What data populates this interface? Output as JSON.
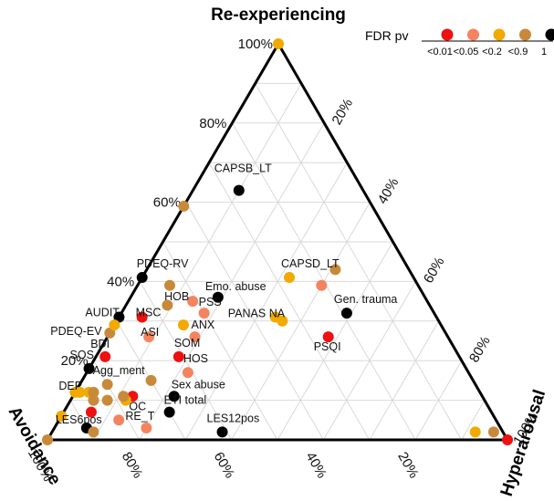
{
  "chart_data": {
    "type": "scatter",
    "subtype": "ternary",
    "title": "",
    "axes": {
      "top": "Re-experiencing",
      "left": "Avoidance",
      "right": "Hyperarousal"
    },
    "ticks": [
      "20%",
      "40%",
      "60%",
      "80%",
      "100%"
    ],
    "grid": true,
    "legend": {
      "title": "FDR pv",
      "position": "top-right",
      "categories": [
        {
          "label": "<0.01",
          "color": "#ee1111"
        },
        {
          "label": "<0.05",
          "color": "#f4845f"
        },
        {
          "label": "<0.2",
          "color": "#f2a900"
        },
        {
          "label": "<0.9",
          "color": "#c88a3a"
        },
        {
          "label": "1",
          "color": "#000000"
        }
      ]
    },
    "points": [
      {
        "label": "CAPSB_LT",
        "reexp": 0.63,
        "hyper": 0.1,
        "cat": 4
      },
      {
        "label": "PDEQ-RV",
        "reexp": 0.41,
        "hyper": 0.0,
        "cat": 4
      },
      {
        "label": "CAPSD_LT",
        "reexp": 0.41,
        "hyper": 0.32,
        "cat": 2
      },
      {
        "label": "Emo. abuse",
        "reexp": 0.36,
        "hyper": 0.19,
        "cat": 4
      },
      {
        "label": "HOB",
        "reexp": 0.35,
        "hyper": 0.14,
        "cat": 1
      },
      {
        "label": "PSS",
        "reexp": 0.32,
        "hyper": 0.18,
        "cat": 1
      },
      {
        "label": "PANAS NA",
        "reexp": 0.31,
        "hyper": 0.34,
        "cat": 2
      },
      {
        "label": "Gen. trauma",
        "reexp": 0.32,
        "hyper": 0.49,
        "cat": 4
      },
      {
        "label": "AUDIT",
        "reexp": 0.31,
        "hyper": 0.0,
        "cat": 4
      },
      {
        "label": "MSC",
        "reexp": 0.31,
        "hyper": 0.05,
        "cat": 0
      },
      {
        "label": "PDEQ-EV",
        "reexp": 0.27,
        "hyper": 0.0,
        "cat": 3
      },
      {
        "label": "ASI",
        "reexp": 0.26,
        "hyper": 0.09,
        "cat": 1
      },
      {
        "label": "ANX",
        "reexp": 0.26,
        "hyper": 0.19,
        "cat": 1
      },
      {
        "label": "SOM",
        "reexp": 0.21,
        "hyper": 0.18,
        "cat": 0
      },
      {
        "label": "PSQI",
        "reexp": 0.26,
        "hyper": 0.48,
        "cat": 0
      },
      {
        "label": "SOS",
        "reexp": 0.18,
        "hyper": 0.0,
        "cat": 4
      },
      {
        "label": "BDI",
        "reexp": 0.21,
        "hyper": 0.02,
        "cat": 0
      },
      {
        "label": "HOS",
        "reexp": 0.17,
        "hyper": 0.22,
        "cat": 1
      },
      {
        "label": "Agg_ment",
        "reexp": 0.14,
        "hyper": 0.06,
        "cat": 3
      },
      {
        "label": "DEP",
        "reexp": 0.12,
        "hyper": 0.0,
        "cat": 2
      },
      {
        "label": "Sex abuse",
        "reexp": 0.11,
        "hyper": 0.22,
        "cat": 4
      },
      {
        "label": "OC",
        "reexp": 0.11,
        "hyper": 0.13,
        "cat": 0
      },
      {
        "label": "ETI total",
        "reexp": 0.07,
        "hyper": 0.23,
        "cat": 4
      },
      {
        "label": "LES6pos",
        "reexp": 0.03,
        "hyper": 0.07,
        "cat": 4
      },
      {
        "label": "RE_T",
        "reexp": 0.03,
        "hyper": 0.2,
        "cat": 1
      },
      {
        "label": "LES12pos",
        "reexp": 0.02,
        "hyper": 0.37,
        "cat": 4
      },
      {
        "label": "",
        "reexp": 1.0,
        "hyper": 0.0,
        "cat": 2
      },
      {
        "label": "",
        "reexp": 0.0,
        "hyper": 0.0,
        "cat": 3
      },
      {
        "label": "",
        "reexp": 0.0,
        "hyper": 1.0,
        "cat": 0
      },
      {
        "label": "",
        "reexp": 0.02,
        "hyper": 0.92,
        "cat": 2
      },
      {
        "label": "",
        "reexp": 0.02,
        "hyper": 0.96,
        "cat": 3
      },
      {
        "label": "",
        "reexp": 0.59,
        "hyper": 0.0,
        "cat": 3
      },
      {
        "label": "",
        "reexp": 0.43,
        "hyper": 0.41,
        "cat": 3
      },
      {
        "label": "",
        "reexp": 0.39,
        "hyper": 0.07,
        "cat": 3
      },
      {
        "label": "",
        "reexp": 0.34,
        "hyper": 0.09,
        "cat": 3
      },
      {
        "label": "",
        "reexp": 0.39,
        "hyper": 0.4,
        "cat": 1
      },
      {
        "label": "",
        "reexp": 0.3,
        "hyper": 0.36,
        "cat": 2
      },
      {
        "label": "",
        "reexp": 0.29,
        "hyper": 0.15,
        "cat": 2
      },
      {
        "label": "",
        "reexp": 0.29,
        "hyper": 0.0,
        "cat": 2
      },
      {
        "label": "",
        "reexp": 0.15,
        "hyper": 0.15,
        "cat": 3
      },
      {
        "label": "",
        "reexp": 0.12,
        "hyper": 0.01,
        "cat": 2
      },
      {
        "label": "",
        "reexp": 0.12,
        "hyper": 0.03,
        "cat": 2
      },
      {
        "label": "",
        "reexp": 0.12,
        "hyper": 0.04,
        "cat": 3
      },
      {
        "label": "",
        "reexp": 0.1,
        "hyper": 0.05,
        "cat": 3
      },
      {
        "label": "",
        "reexp": 0.1,
        "hyper": 0.12,
        "cat": 2
      },
      {
        "label": "",
        "reexp": 0.1,
        "hyper": 0.08,
        "cat": 3
      },
      {
        "label": "",
        "reexp": 0.11,
        "hyper": 0.11,
        "cat": 3
      },
      {
        "label": "",
        "reexp": 0.06,
        "hyper": 0.0,
        "cat": 2
      },
      {
        "label": "",
        "reexp": 0.07,
        "hyper": 0.06,
        "cat": 0
      },
      {
        "label": "",
        "reexp": 0.05,
        "hyper": 0.13,
        "cat": 1
      },
      {
        "label": "",
        "reexp": 0.02,
        "hyper": 0.09,
        "cat": 3
      }
    ]
  }
}
